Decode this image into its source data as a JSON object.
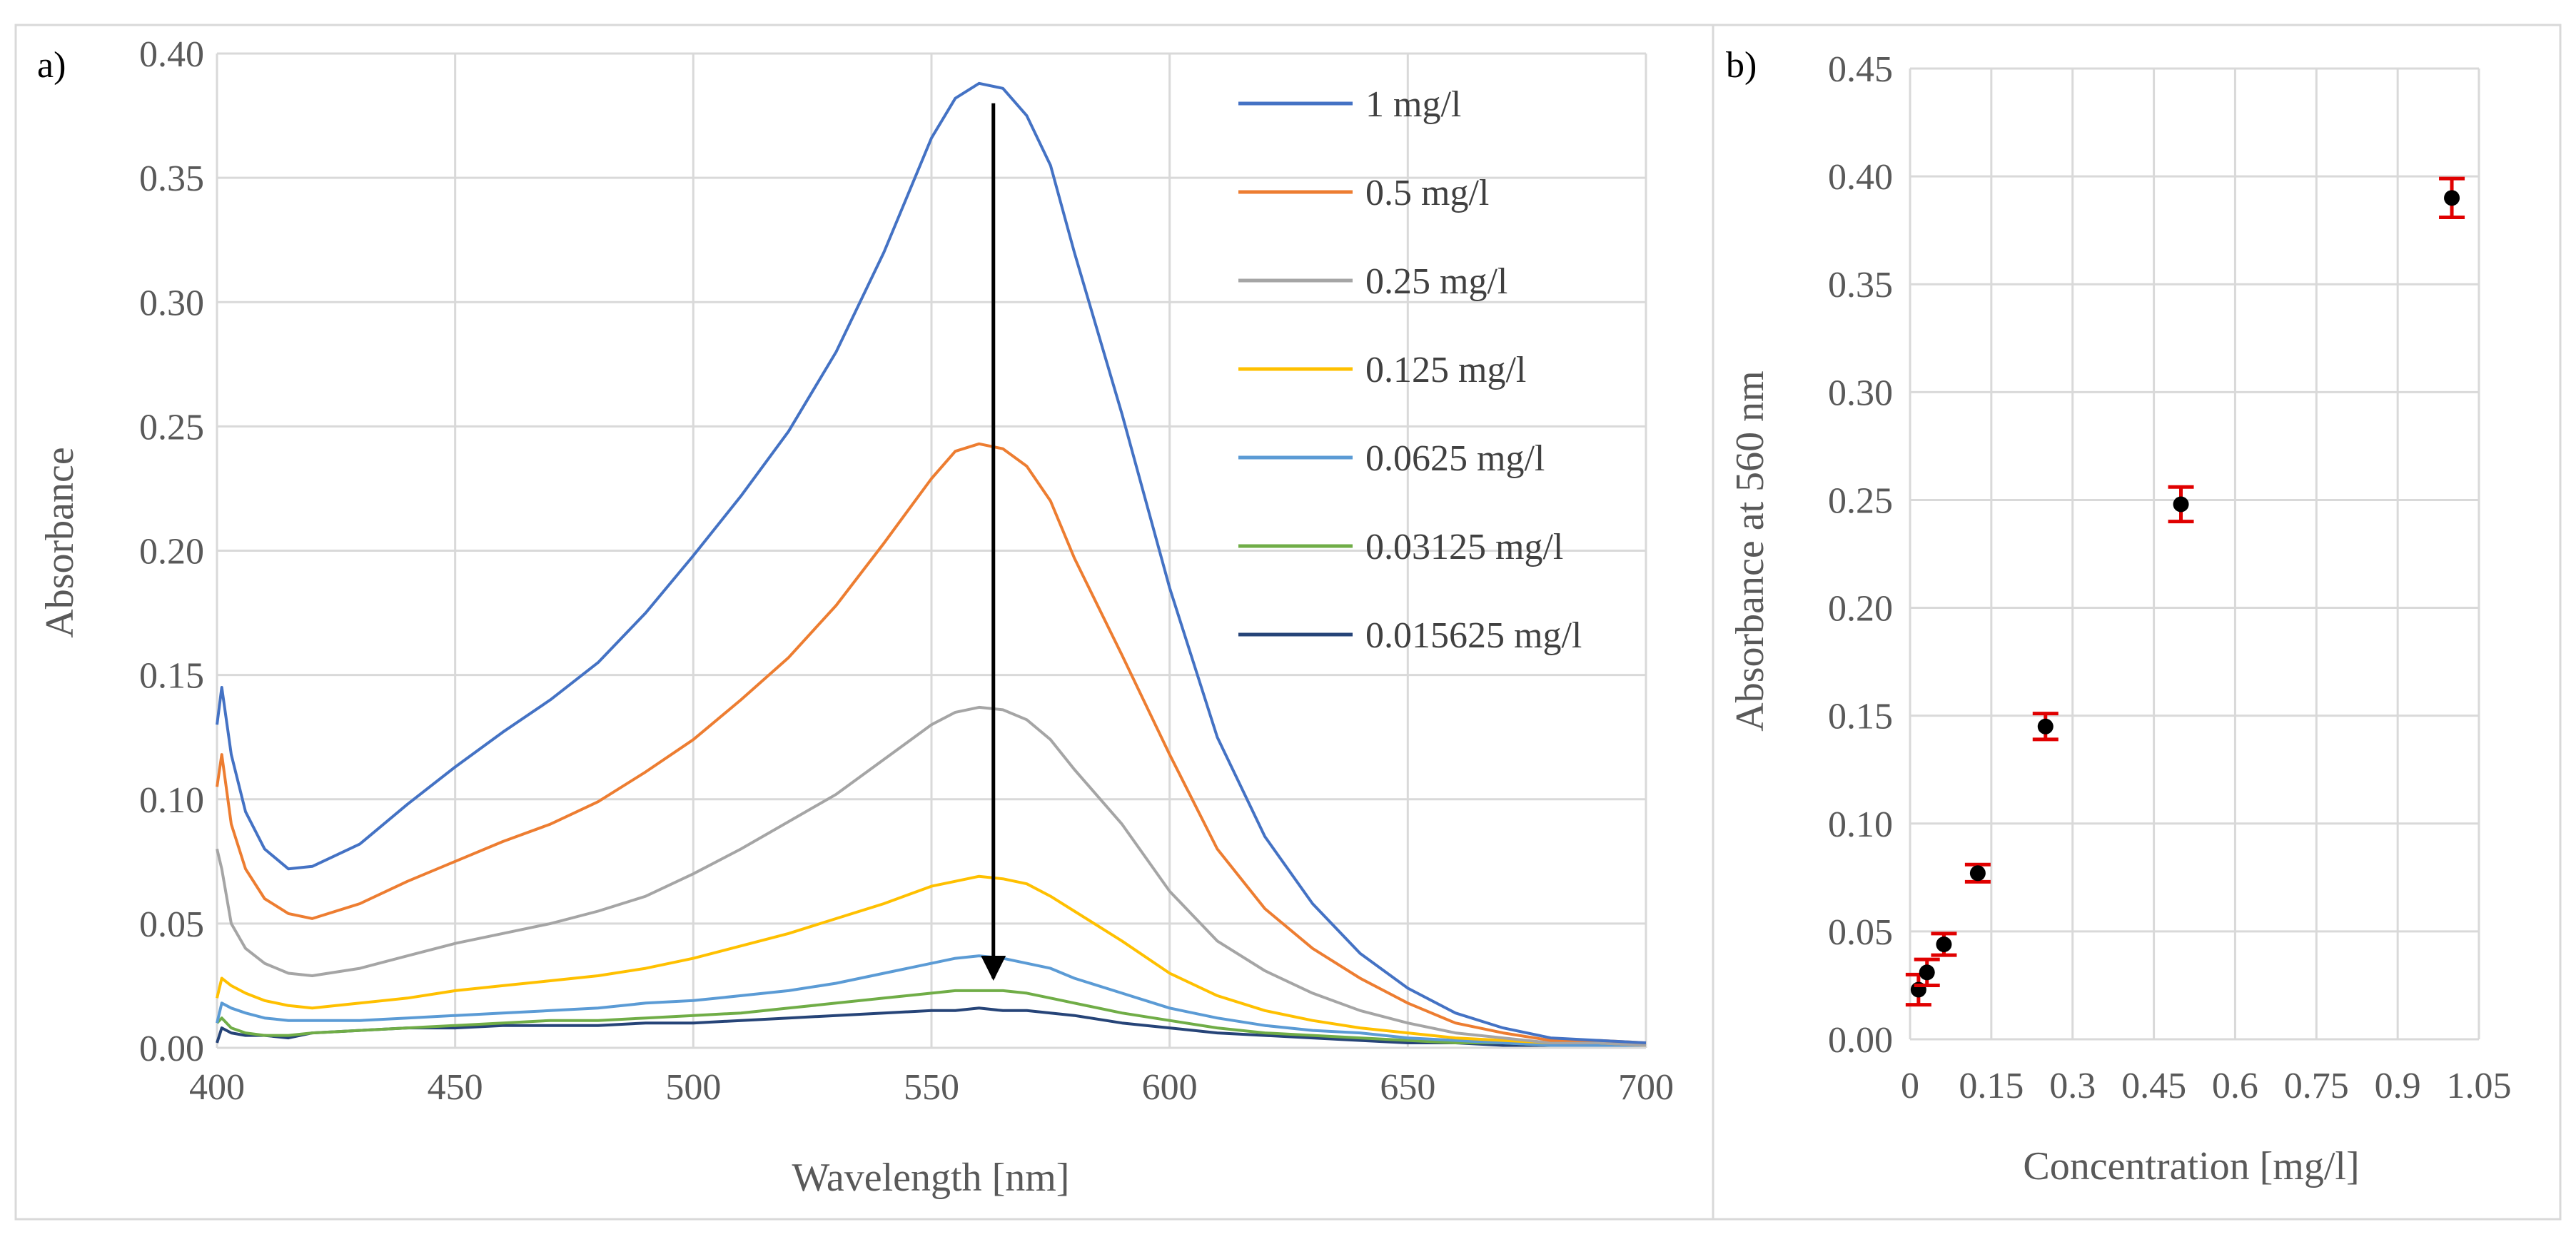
{
  "chart_data": [
    {
      "panel_label": "a)",
      "type": "line",
      "xlabel": "Wavelength [nm]",
      "ylabel": "Absorbance",
      "xlim": [
        400,
        700
      ],
      "ylim": [
        0,
        0.4
      ],
      "x_ticks": [
        400,
        450,
        500,
        550,
        600,
        650,
        700
      ],
      "x_tick_labels": [
        "400",
        "450",
        "500",
        "550",
        "600",
        "650",
        "700"
      ],
      "y_ticks": [
        0,
        0.05,
        0.1,
        0.15,
        0.2,
        0.25,
        0.3,
        0.35,
        0.4
      ],
      "y_tick_labels": [
        "0.00",
        "0.05",
        "0.10",
        "0.15",
        "0.20",
        "0.25",
        "0.30",
        "0.35",
        "0.40"
      ],
      "grid": true,
      "legend_position": "top-right",
      "annotation": {
        "type": "arrow",
        "x": 563,
        "y_from": 0.38,
        "y_to": 0.028
      },
      "x": [
        400,
        401,
        403,
        406,
        410,
        415,
        420,
        430,
        440,
        450,
        460,
        470,
        480,
        490,
        500,
        510,
        520,
        530,
        540,
        550,
        555,
        560,
        565,
        570,
        575,
        580,
        590,
        600,
        610,
        620,
        630,
        640,
        650,
        660,
        670,
        680,
        690,
        700
      ],
      "series": [
        {
          "name": "1 mg/l",
          "color": "#4472c4",
          "values": [
            0.13,
            0.145,
            0.118,
            0.095,
            0.08,
            0.072,
            0.073,
            0.082,
            0.098,
            0.113,
            0.127,
            0.14,
            0.155,
            0.175,
            0.198,
            0.222,
            0.248,
            0.28,
            0.32,
            0.366,
            0.382,
            0.388,
            0.386,
            0.375,
            0.355,
            0.32,
            0.255,
            0.185,
            0.125,
            0.085,
            0.058,
            0.038,
            0.024,
            0.014,
            0.008,
            0.004,
            0.003,
            0.002
          ]
        },
        {
          "name": "0.5 mg/l",
          "color": "#ed7d31",
          "values": [
            0.105,
            0.118,
            0.09,
            0.072,
            0.06,
            0.054,
            0.052,
            0.058,
            0.067,
            0.075,
            0.083,
            0.09,
            0.099,
            0.111,
            0.124,
            0.14,
            0.157,
            0.178,
            0.203,
            0.229,
            0.24,
            0.243,
            0.241,
            0.234,
            0.22,
            0.197,
            0.158,
            0.118,
            0.08,
            0.056,
            0.04,
            0.028,
            0.018,
            0.01,
            0.006,
            0.003,
            0.003,
            0.002
          ]
        },
        {
          "name": "0.25 mg/l",
          "color": "#a5a5a5",
          "values": [
            0.08,
            0.072,
            0.05,
            0.04,
            0.034,
            0.03,
            0.029,
            0.032,
            0.037,
            0.042,
            0.046,
            0.05,
            0.055,
            0.061,
            0.07,
            0.08,
            0.091,
            0.102,
            0.116,
            0.13,
            0.135,
            0.137,
            0.136,
            0.132,
            0.124,
            0.112,
            0.09,
            0.063,
            0.043,
            0.031,
            0.022,
            0.015,
            0.01,
            0.006,
            0.004,
            0.002,
            0.002,
            0.001
          ]
        },
        {
          "name": "0.125 mg/l",
          "color": "#ffc000",
          "values": [
            0.02,
            0.028,
            0.025,
            0.022,
            0.019,
            0.017,
            0.016,
            0.018,
            0.02,
            0.023,
            0.025,
            0.027,
            0.029,
            0.032,
            0.036,
            0.041,
            0.046,
            0.052,
            0.058,
            0.065,
            0.067,
            0.069,
            0.068,
            0.066,
            0.061,
            0.055,
            0.043,
            0.03,
            0.021,
            0.015,
            0.011,
            0.008,
            0.006,
            0.004,
            0.003,
            0.002,
            0.002,
            0.001
          ]
        },
        {
          "name": "0.0625 mg/l",
          "color": "#5b9bd5",
          "values": [
            0.01,
            0.018,
            0.016,
            0.014,
            0.012,
            0.011,
            0.011,
            0.011,
            0.012,
            0.013,
            0.014,
            0.015,
            0.016,
            0.018,
            0.019,
            0.021,
            0.023,
            0.026,
            0.03,
            0.034,
            0.036,
            0.037,
            0.036,
            0.034,
            0.032,
            0.028,
            0.022,
            0.016,
            0.012,
            0.009,
            0.007,
            0.006,
            0.004,
            0.003,
            0.002,
            0.001,
            0.001,
            0.001
          ]
        },
        {
          "name": "0.03125 mg/l",
          "color": "#70ad47",
          "values": [
            0.01,
            0.012,
            0.008,
            0.006,
            0.005,
            0.005,
            0.006,
            0.007,
            0.008,
            0.009,
            0.01,
            0.011,
            0.011,
            0.012,
            0.013,
            0.014,
            0.016,
            0.018,
            0.02,
            0.022,
            0.023,
            0.023,
            0.023,
            0.022,
            0.02,
            0.018,
            0.014,
            0.011,
            0.008,
            0.006,
            0.005,
            0.004,
            0.003,
            0.002,
            0.002,
            0.001,
            0.001,
            0.001
          ]
        },
        {
          "name": "0.015625 mg/l",
          "color": "#264478",
          "values": [
            0.002,
            0.008,
            0.006,
            0.005,
            0.005,
            0.004,
            0.006,
            0.007,
            0.008,
            0.008,
            0.009,
            0.009,
            0.009,
            0.01,
            0.01,
            0.011,
            0.012,
            0.013,
            0.014,
            0.015,
            0.015,
            0.016,
            0.015,
            0.015,
            0.014,
            0.013,
            0.01,
            0.008,
            0.006,
            0.005,
            0.004,
            0.003,
            0.002,
            0.002,
            0.001,
            0.001,
            0.001,
            0.001
          ]
        }
      ]
    },
    {
      "panel_label": "b)",
      "type": "scatter",
      "xlabel": "Concentration [mg/l]",
      "ylabel": "Absorbance at 560 nm",
      "xlim": [
        0,
        1.05
      ],
      "ylim": [
        0,
        0.45
      ],
      "x_ticks": [
        0,
        0.15,
        0.3,
        0.45,
        0.6,
        0.75,
        0.9,
        1.05
      ],
      "x_tick_labels": [
        "0",
        "0.15",
        "0.3",
        "0.45",
        "0.6",
        "0.75",
        "0.9",
        "1.05"
      ],
      "y_ticks": [
        0,
        0.05,
        0.1,
        0.15,
        0.2,
        0.25,
        0.3,
        0.35,
        0.4,
        0.45
      ],
      "y_tick_labels": [
        "0.00",
        "0.05",
        "0.10",
        "0.15",
        "0.20",
        "0.25",
        "0.30",
        "0.35",
        "0.40",
        "0.45"
      ],
      "grid": true,
      "marker_color": "#000000",
      "error_bar_color": "#e00000",
      "points": [
        {
          "x": 0.015625,
          "y": 0.023,
          "err": 0.007
        },
        {
          "x": 0.03125,
          "y": 0.031,
          "err": 0.006
        },
        {
          "x": 0.0625,
          "y": 0.044,
          "err": 0.005
        },
        {
          "x": 0.125,
          "y": 0.077,
          "err": 0.004
        },
        {
          "x": 0.25,
          "y": 0.145,
          "err": 0.006
        },
        {
          "x": 0.5,
          "y": 0.248,
          "err": 0.008
        },
        {
          "x": 1.0,
          "y": 0.39,
          "err": 0.009
        }
      ]
    }
  ]
}
